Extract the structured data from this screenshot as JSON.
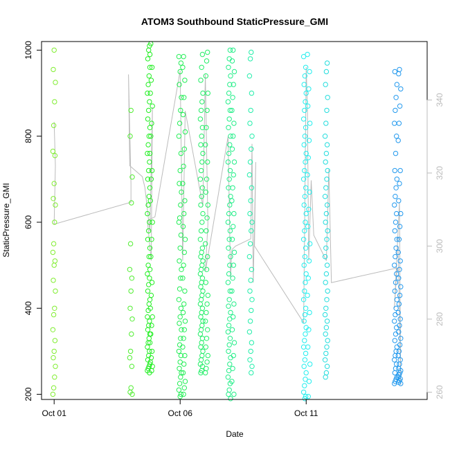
{
  "chart_data": {
    "type": "scatter",
    "title": "ATOM3 Southbound StaticPressure_GMI",
    "xlabel": "Date",
    "ylabel": "StaticPressure_GMI",
    "x_ticks": [
      {
        "value": 1.0,
        "label": "Oct 01"
      },
      {
        "value": 6.0,
        "label": "Oct 06"
      },
      {
        "value": 11.0,
        "label": "Oct 11"
      }
    ],
    "xlim": [
      0.5,
      15.8
    ],
    "ylim": [
      188,
      1020
    ],
    "y_ticks": [
      200,
      400,
      600,
      800,
      1000
    ],
    "y2lim": [
      258,
      356
    ],
    "y2_ticks": [
      260,
      280,
      300,
      320,
      340
    ],
    "grid": false,
    "point_style": "open-circle",
    "color_scale": "green-to-blue by date",
    "series": [
      {
        "x": 1.0,
        "y": [
          200,
          215,
          240,
          265,
          285,
          300,
          325,
          350,
          385,
          400,
          440,
          465,
          500,
          510,
          530,
          550,
          600,
          640,
          655,
          690,
          755,
          765,
          825,
          880,
          925,
          955,
          1000
        ],
        "color": "#80ee30"
      },
      {
        "x": 4.05,
        "y": [
          200,
          205,
          215,
          265,
          285,
          300,
          340,
          375,
          400,
          440,
          470,
          490,
          550,
          645,
          705,
          800,
          860
        ],
        "color": "#50ee30"
      },
      {
        "x": 4.75,
        "y": [
          250,
          255,
          260,
          265,
          270,
          280,
          290,
          300,
          310,
          320,
          330,
          340,
          350,
          360,
          370,
          380,
          395,
          410,
          420,
          440,
          455,
          470,
          480,
          500,
          520,
          540,
          560,
          580,
          600,
          620,
          640,
          660,
          680,
          700,
          720,
          740,
          760,
          780,
          800,
          820,
          840,
          860,
          880,
          900,
          920,
          940,
          960,
          980,
          1000,
          1010
        ],
        "color": "#22ee22"
      },
      {
        "x": 4.85,
        "y": [
          255,
          265,
          275,
          285,
          300,
          320,
          340,
          360,
          380,
          400,
          430,
          460,
          490,
          520,
          560,
          600,
          650,
          700,
          720,
          760,
          800,
          830,
          870,
          900,
          930,
          960,
          990,
          1015
        ],
        "color": "#22ee22"
      },
      {
        "x": 6.0,
        "y": [
          195,
          200,
          210,
          225,
          240,
          250,
          260,
          275,
          290,
          300,
          315,
          330,
          350,
          365,
          380,
          400,
          420,
          445,
          470,
          490,
          510,
          540,
          570,
          600,
          610,
          640,
          670,
          690,
          720,
          760,
          800,
          830,
          860,
          890,
          920,
          950,
          970,
          985
        ],
        "color": "#22ee55"
      },
      {
        "x": 6.15,
        "y": [
          200,
          215,
          230,
          250,
          270,
          290,
          310,
          330,
          350,
          370,
          390,
          410,
          440,
          470,
          500,
          530,
          560,
          590,
          620,
          650,
          690,
          730,
          770,
          810,
          850,
          890,
          930,
          960,
          985
        ],
        "color": "#22ee55"
      },
      {
        "x": 6.85,
        "y": [
          250,
          255,
          265,
          270,
          280,
          290,
          300,
          310,
          320,
          330,
          340,
          350,
          360,
          370,
          380,
          390,
          400,
          410,
          420,
          430,
          440,
          450,
          460,
          470,
          480,
          490,
          500,
          510,
          520,
          530,
          540,
          560,
          580,
          600,
          620,
          640,
          660,
          680,
          700,
          720,
          740,
          760,
          780,
          800,
          820,
          840,
          860,
          880,
          900,
          930,
          960,
          990
        ],
        "color": "#22ee66"
      },
      {
        "x": 7.05,
        "y": [
          250,
          260,
          275,
          290,
          310,
          330,
          350,
          370,
          390,
          410,
          430,
          460,
          490,
          520,
          550,
          580,
          610,
          640,
          670,
          700,
          740,
          780,
          820,
          860,
          900,
          940,
          975,
          995
        ],
        "color": "#22ee66"
      },
      {
        "x": 7.95,
        "y": [
          190,
          200,
          210,
          225,
          240,
          255,
          270,
          285,
          300,
          315,
          330,
          345,
          360,
          375,
          390,
          405,
          420,
          440,
          460,
          480,
          500,
          520,
          540,
          560,
          580,
          600,
          620,
          640,
          660,
          680,
          700,
          720,
          740,
          760,
          780,
          800,
          820,
          840,
          860,
          880,
          900,
          920,
          940,
          960,
          980,
          1000
        ],
        "color": "#22ee88"
      },
      {
        "x": 8.1,
        "y": [
          200,
          230,
          260,
          290,
          320,
          350,
          380,
          410,
          440,
          470,
          500,
          530,
          560,
          590,
          620,
          650,
          680,
          710,
          740,
          770,
          800,
          830,
          860,
          890,
          920,
          950,
          975,
          1000
        ],
        "color": "#22ee88"
      },
      {
        "x": 8.8,
        "y": [
          250,
          265,
          280,
          300,
          320,
          345,
          370,
          395,
          420,
          440,
          465,
          490,
          520,
          550,
          580,
          600,
          620,
          650,
          680,
          710,
          740,
          770,
          800,
          830,
          860,
          900,
          940,
          980,
          995
        ],
        "color": "#22eeaa"
      },
      {
        "x": 10.95,
        "y": [
          190,
          195,
          205,
          220,
          235,
          250,
          265,
          280,
          295,
          310,
          325,
          340,
          355,
          370,
          385,
          400,
          420,
          440,
          460,
          480,
          500,
          520,
          540,
          560,
          580,
          600,
          620,
          640,
          660,
          680,
          700,
          720,
          740,
          760,
          780,
          800,
          820,
          840,
          860,
          880,
          900,
          920,
          940,
          960,
          985
        ],
        "color": "#22eeee"
      },
      {
        "x": 11.1,
        "y": [
          195,
          230,
          270,
          310,
          350,
          390,
          430,
          470,
          510,
          550,
          590,
          630,
          670,
          710,
          750,
          790,
          830,
          870,
          910,
          950,
          990
        ],
        "color": "#22eeee"
      },
      {
        "x": 11.8,
        "y": [
          240,
          250,
          265,
          280,
          295,
          310,
          325,
          340,
          355,
          370,
          385,
          400,
          420,
          440,
          460,
          480,
          500,
          520,
          540,
          560,
          580,
          600,
          620,
          640,
          660,
          680,
          700,
          720,
          740,
          760,
          780,
          800,
          830,
          860,
          890,
          920,
          950,
          970
        ],
        "color": "#22dddd"
      },
      {
        "x": 14.55,
        "y": [
          225,
          230,
          235,
          240,
          250,
          260,
          270,
          280,
          290,
          300,
          310,
          325,
          340,
          355,
          370,
          385,
          400,
          420,
          440,
          460,
          480,
          500,
          520,
          540,
          560,
          580,
          600,
          620,
          640,
          660,
          680,
          700,
          720,
          760,
          800,
          830,
          860,
          890,
          920,
          950
        ],
        "color": "#2299ee"
      },
      {
        "x": 14.7,
        "y": [
          225,
          228,
          232,
          236,
          240,
          245,
          250,
          255,
          260,
          270,
          280,
          290,
          300,
          315,
          330,
          345,
          360,
          375,
          390,
          410,
          430,
          450,
          470,
          490,
          510,
          530,
          560,
          590,
          620,
          650,
          690,
          720,
          790,
          830,
          870,
          910,
          945,
          955
        ],
        "color": "#2299ee"
      }
    ],
    "pressure_line": {
      "color": "#bbbbbb",
      "points": [
        [
          1.0,
          334
        ],
        [
          1.05,
          322
        ],
        [
          1.0,
          306
        ],
        [
          4.05,
          312
        ],
        [
          4.05,
          317
        ],
        [
          3.95,
          347
        ],
        [
          4.0,
          322
        ],
        [
          4.5,
          319
        ],
        [
          4.6,
          316
        ],
        [
          4.8,
          304
        ],
        [
          4.9,
          338
        ],
        [
          4.85,
          296
        ],
        [
          4.7,
          307
        ],
        [
          5.0,
          308
        ],
        [
          6.0,
          348
        ],
        [
          6.1,
          296
        ],
        [
          6.2,
          337
        ],
        [
          6.9,
          311
        ],
        [
          7.0,
          347
        ],
        [
          7.1,
          306
        ],
        [
          7.0,
          293
        ],
        [
          7.9,
          330
        ],
        [
          8.0,
          291
        ],
        [
          8.05,
          299
        ],
        [
          8.2,
          300
        ],
        [
          8.8,
          302
        ],
        [
          8.85,
          328
        ],
        [
          8.9,
          290
        ],
        [
          9.0,
          323
        ],
        [
          8.95,
          300
        ],
        [
          10.9,
          279
        ],
        [
          11.0,
          349
        ],
        [
          11.05,
          337
        ],
        [
          11.1,
          296
        ],
        [
          11.2,
          318
        ],
        [
          11.3,
          303
        ],
        [
          11.8,
          296
        ],
        [
          11.9,
          321
        ],
        [
          12.0,
          290
        ],
        [
          14.6,
          294
        ],
        [
          14.5,
          283
        ],
        [
          14.7,
          312
        ],
        [
          14.75,
          262
        ],
        [
          14.65,
          300
        ]
      ]
    }
  }
}
